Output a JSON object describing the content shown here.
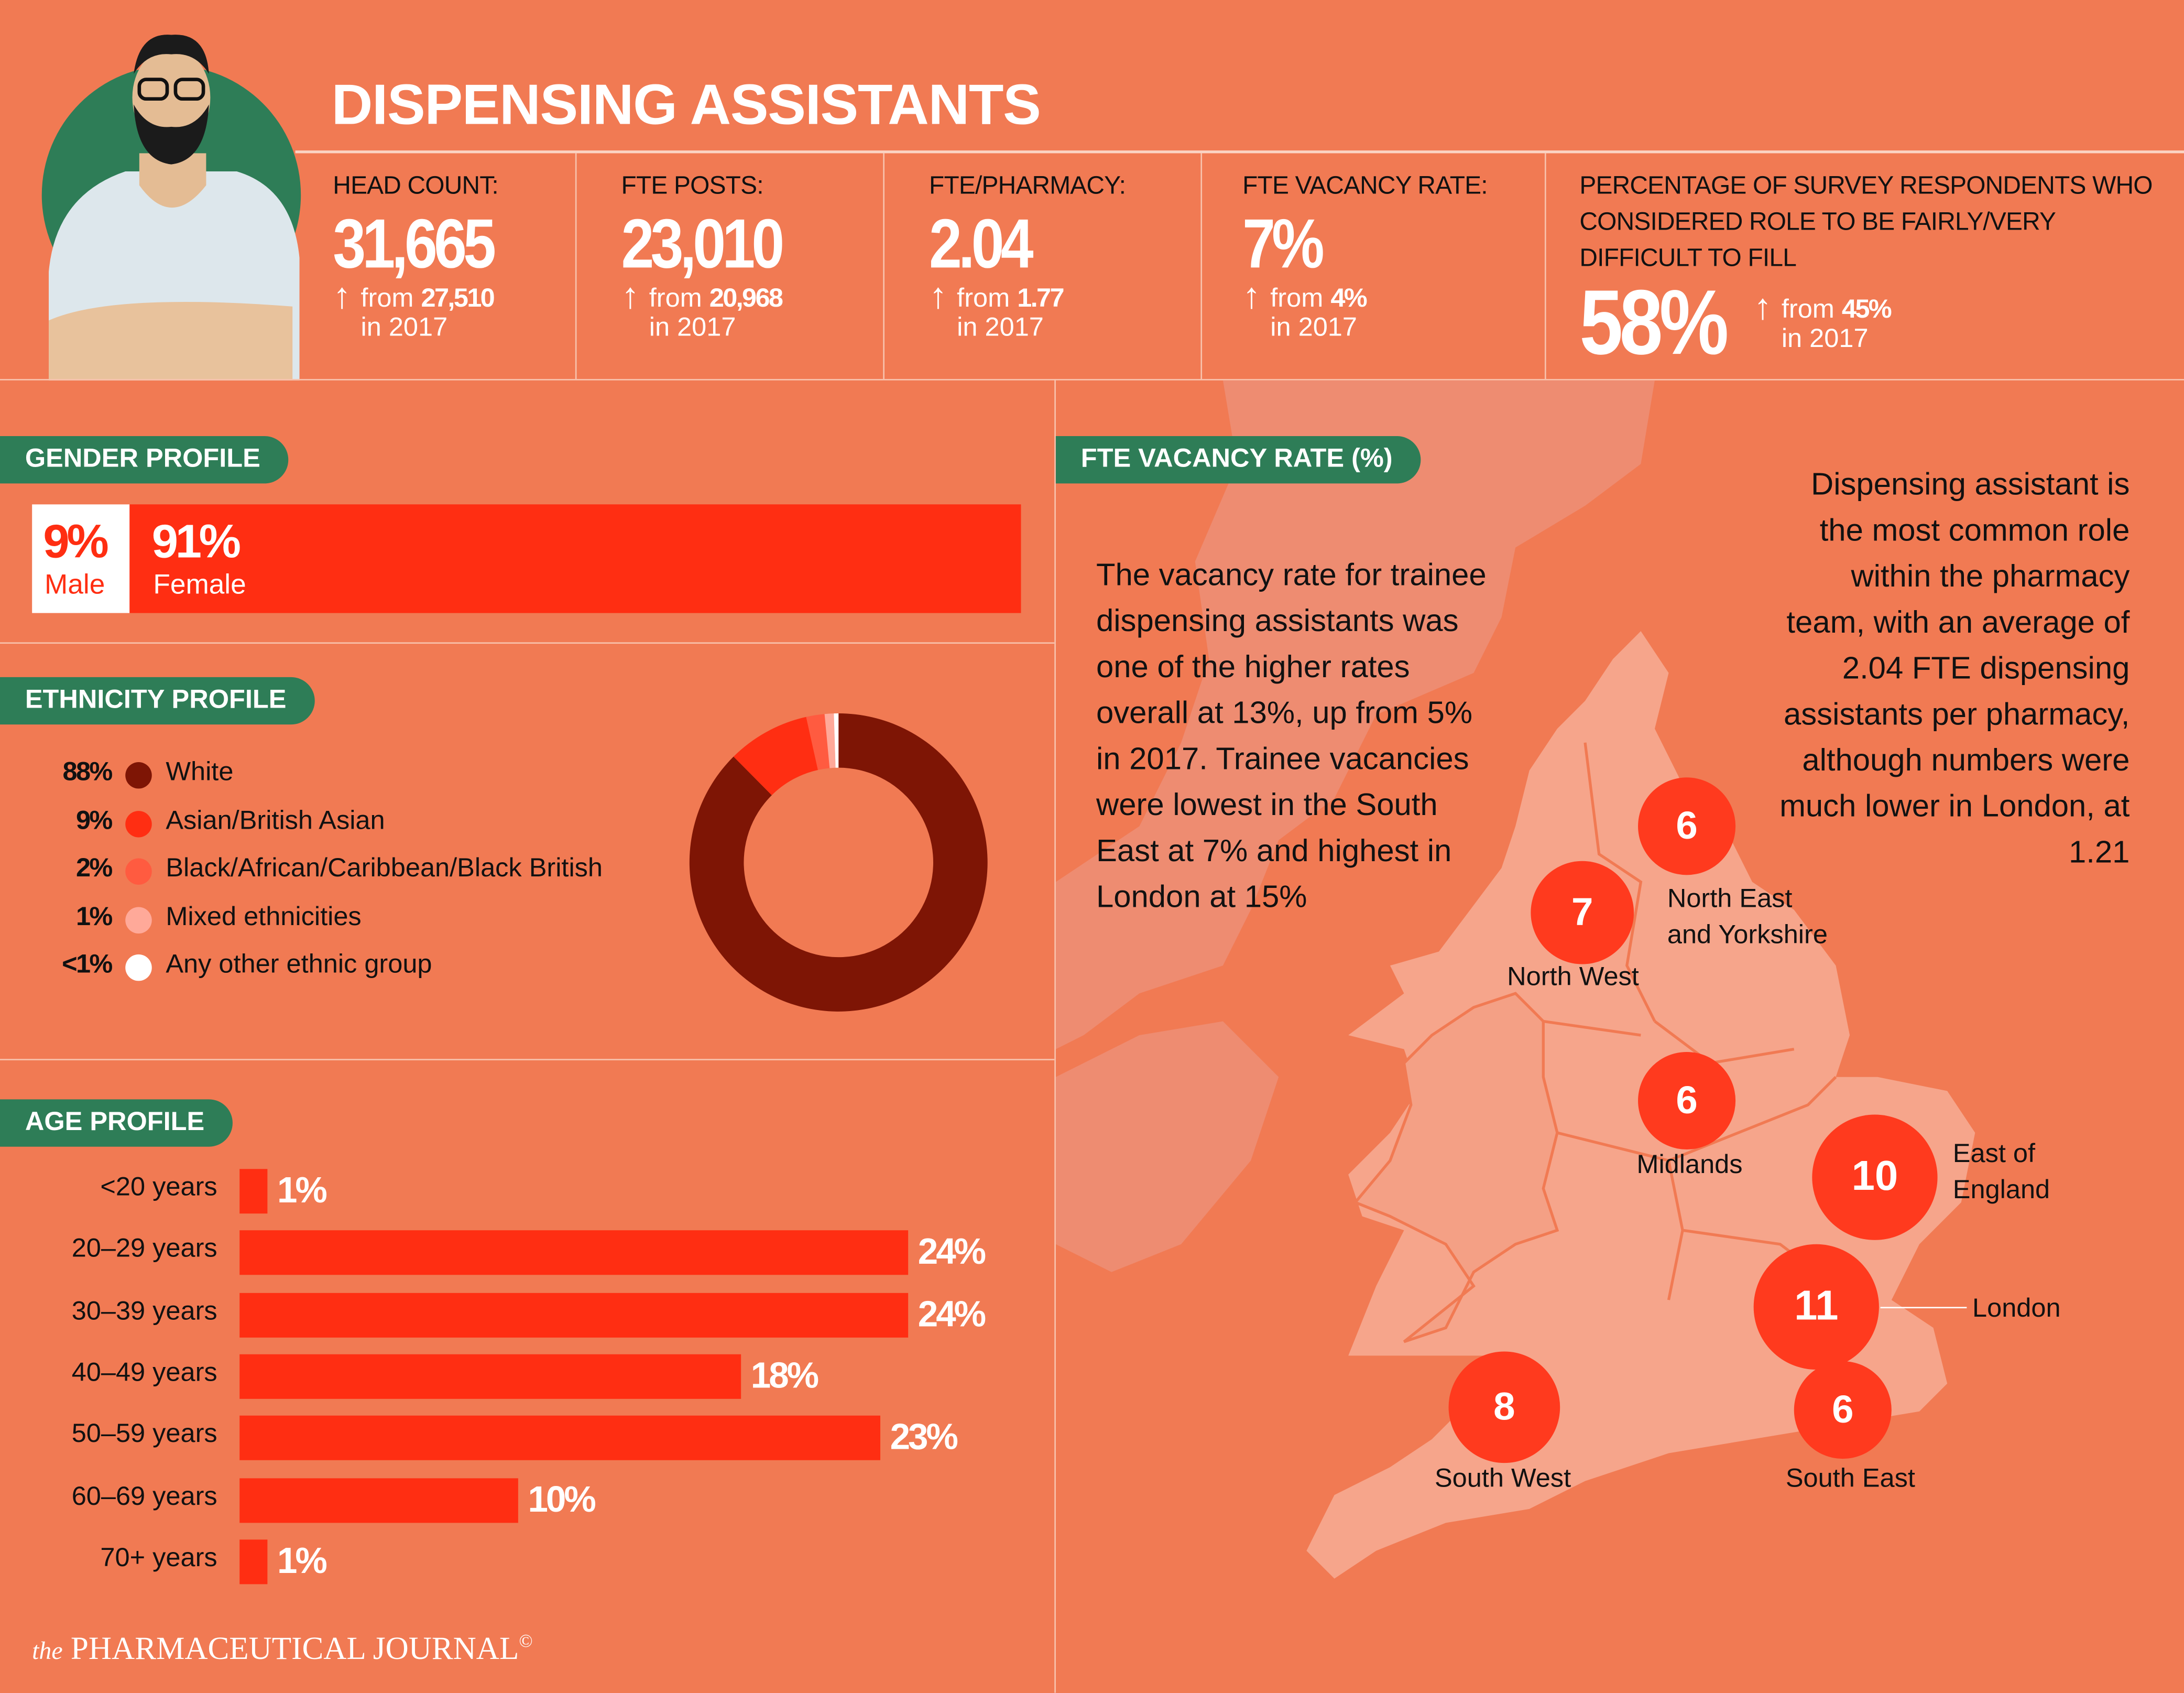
{
  "header": {
    "title": "DISPENSING ASSISTANTS"
  },
  "stats": [
    {
      "label": "HEAD COUNT:",
      "value": "31,665",
      "from_prefix": "from",
      "from_value": "27,510",
      "year": "in 2017"
    },
    {
      "label": "FTE POSTS:",
      "value": "23,010",
      "from_prefix": "from",
      "from_value": "20,968",
      "year": "in 2017"
    },
    {
      "label": "FTE/PHARMACY:",
      "value": "2.04",
      "from_prefix": "from",
      "from_value": "1.77",
      "year": "in 2017"
    },
    {
      "label": "FTE VACANCY RATE:",
      "value": "7%",
      "from_prefix": "from",
      "from_value": "4%",
      "year": "in 2017"
    },
    {
      "label": "PERCENTAGE OF SURVEY RESPONDENTS WHO CONSIDERED ROLE TO BE FAIRLY/VERY DIFFICULT TO FILL",
      "value": "58%",
      "from_prefix": "from",
      "from_value": "45%",
      "year": "in 2017"
    }
  ],
  "gender": {
    "title": "GENDER PROFILE",
    "male_pct": "9%",
    "male_label": "Male",
    "female_pct": "91%",
    "female_label": "Female",
    "male_value": 9,
    "female_value": 91
  },
  "chart_data": [
    {
      "type": "pie",
      "title": "ETHNICITY PROFILE",
      "categories": [
        "White",
        "Asian/British Asian",
        "Black/African/Caribbean/Black British",
        "Mixed ethnicities",
        "Any other ethnic group"
      ],
      "labels": [
        "88%",
        "9%",
        "2%",
        "1%",
        "<1%"
      ],
      "values": [
        88,
        9,
        2,
        1,
        0.5
      ],
      "colors": [
        "#7E1505",
        "#FF2E12",
        "#FF5B40",
        "#FFA999",
        "#FFFFFF"
      ]
    },
    {
      "type": "bar",
      "title": "AGE PROFILE",
      "categories": [
        "<20 years",
        "20–29 years",
        "30–39 years",
        "40–49 years",
        "50–59 years",
        "60–69 years",
        "70+ years"
      ],
      "values": [
        1,
        24,
        24,
        18,
        23,
        10,
        1
      ],
      "labels": [
        "1%",
        "24%",
        "24%",
        "18%",
        "23%",
        "10%",
        "1%"
      ],
      "orientation": "horizontal",
      "color": "#FF2E12"
    }
  ],
  "map": {
    "title": "FTE VACANCY RATE (%)",
    "left_text": "The vacancy rate for trainee dispensing assistants was one of the higher rates overall at 13%, up from 5% in 2017. Trainee vacancies were lowest in the South East at 7% and highest in London at 15%",
    "right_text": "Dispensing assistant is the most common role within the pharmacy team, with an average of 2.04 FTE dispensing assistants per pharmacy, although numbers were much lower in London, at 1.21",
    "regions": [
      {
        "name": "North East\nand Yorkshire",
        "value": "6"
      },
      {
        "name": "North West",
        "value": "7"
      },
      {
        "name": "Midlands",
        "value": "6"
      },
      {
        "name": "East of\nEngland",
        "value": "10"
      },
      {
        "name": "London",
        "value": "11"
      },
      {
        "name": "South East",
        "value": "6"
      },
      {
        "name": "South West",
        "value": "8"
      }
    ]
  },
  "footer": {
    "logo_small": "the",
    "logo": "PHARMACEUTICAL JOURNAL",
    "copyright": "©"
  },
  "colors": {
    "background": "#F17A53",
    "green": "#2E7D57",
    "red": "#FF2E12",
    "dark": "#7E1505"
  }
}
